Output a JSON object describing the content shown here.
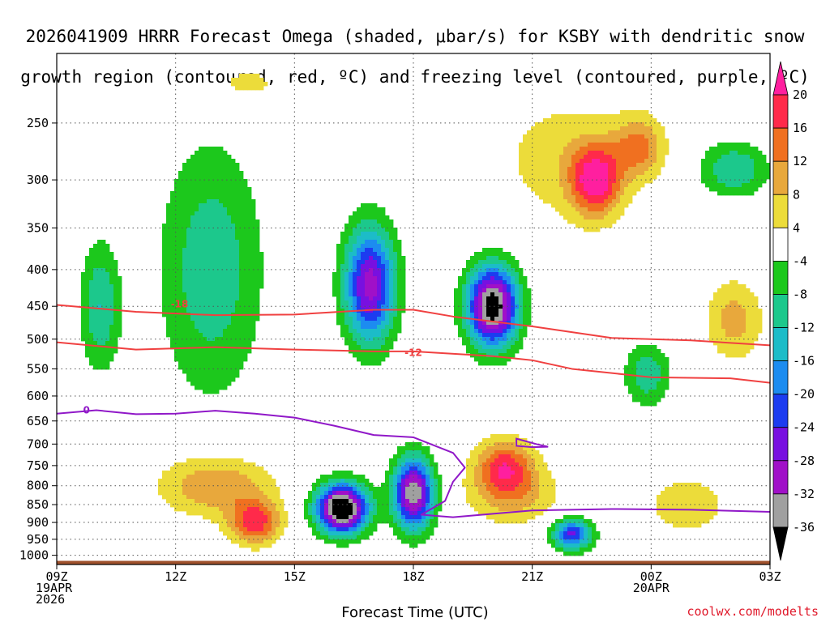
{
  "chart_data": {
    "type": "heatmap",
    "title_line1": "2026041909 HRRR Forecast Omega (shaded, μbar/s) for KSBY with dendritic snow",
    "title_line2": "growth region (contoured, red, ºC) and freezing level (contoured, purple, ºC)",
    "xlabel": "Forecast Time (UTC)",
    "ylabel": "",
    "credit": "coolwx.com/modelts",
    "y_axis": {
      "scale": "log-pressure",
      "range": [
        1030,
        200
      ],
      "ticks": [
        250,
        300,
        350,
        400,
        450,
        500,
        550,
        600,
        650,
        700,
        750,
        800,
        850,
        900,
        950,
        1000
      ]
    },
    "x_axis": {
      "range_hours": [
        0,
        18
      ],
      "ticks": [
        {
          "hour": 0,
          "lines": [
            "09Z",
            "19APR",
            "2026"
          ]
        },
        {
          "hour": 3,
          "lines": [
            "12Z"
          ]
        },
        {
          "hour": 6,
          "lines": [
            "15Z"
          ]
        },
        {
          "hour": 9,
          "lines": [
            "18Z"
          ]
        },
        {
          "hour": 12,
          "lines": [
            "21Z"
          ]
        },
        {
          "hour": 15,
          "lines": [
            "00Z",
            "20APR"
          ]
        },
        {
          "hour": 18,
          "lines": [
            "03Z"
          ]
        }
      ]
    },
    "colorbar": {
      "units": "μbar/s",
      "bins": [
        {
          "lo": 20,
          "hi": null,
          "color": "#ff1f9f"
        },
        {
          "lo": 16,
          "hi": 20,
          "color": "#ff2a4a"
        },
        {
          "lo": 12,
          "hi": 16,
          "color": "#f07020"
        },
        {
          "lo": 8,
          "hi": 12,
          "color": "#e8a83c"
        },
        {
          "lo": 4,
          "hi": 8,
          "color": "#ecdc3a"
        },
        {
          "lo": -4,
          "hi": 4,
          "color": "#ffffff"
        },
        {
          "lo": -8,
          "hi": -4,
          "color": "#1cc81c"
        },
        {
          "lo": -12,
          "hi": -8,
          "color": "#1cc88c"
        },
        {
          "lo": -16,
          "hi": -12,
          "color": "#1cbcc8"
        },
        {
          "lo": -20,
          "hi": -16,
          "color": "#1c8cf0"
        },
        {
          "lo": -24,
          "hi": -20,
          "color": "#1c3cf0"
        },
        {
          "lo": -28,
          "hi": -24,
          "color": "#7810e0"
        },
        {
          "lo": -32,
          "hi": -28,
          "color": "#a010c8"
        },
        {
          "lo": -36,
          "hi": -32,
          "color": "#a0a0a0"
        },
        {
          "lo": null,
          "hi": -36,
          "color": "#000000"
        }
      ],
      "labels": [
        "20",
        "16",
        "12",
        "8",
        "4",
        "-4",
        "-8",
        "-12",
        "-16",
        "-20",
        "-24",
        "-28",
        "-32",
        "-36"
      ]
    },
    "omega_features": [
      {
        "hour": 16.2,
        "p": 860,
        "sx": 0.45,
        "sy": 0.055,
        "peak": -44,
        "sign": "negative"
      },
      {
        "hour": 20.0,
        "p": 450,
        "sx": 0.45,
        "sy": 0.09,
        "peak": -40,
        "sign": "negative"
      },
      {
        "hour": 18.0,
        "p": 820,
        "sx": 0.35,
        "sy": 0.08,
        "peak": -36,
        "sign": "negative"
      },
      {
        "hour": 16.9,
        "p": 420,
        "sx": 0.45,
        "sy": 0.13,
        "peak": -30,
        "sign": "negative"
      },
      {
        "hour": 22.0,
        "p": 935,
        "sx": 0.35,
        "sy": 0.035,
        "peak": -25,
        "sign": "negative"
      },
      {
        "hour": 12.9,
        "p": 400,
        "sx": 0.9,
        "sy": 0.28,
        "peak": -11,
        "sign": "negative"
      },
      {
        "hour": 10.1,
        "p": 450,
        "sx": 0.35,
        "sy": 0.14,
        "peak": -12,
        "sign": "negative"
      },
      {
        "hour": 23.9,
        "p": 560,
        "sx": 0.4,
        "sy": 0.07,
        "peak": -11,
        "sign": "negative"
      },
      {
        "hour": 26.1,
        "p": 290,
        "sx": 0.6,
        "sy": 0.06,
        "peak": -12,
        "sign": "negative"
      },
      {
        "hour": 14.0,
        "p": 900,
        "sx": 0.45,
        "sy": 0.05,
        "peak": 18,
        "sign": "positive"
      },
      {
        "hour": 13.0,
        "p": 800,
        "sx": 1.0,
        "sy": 0.07,
        "peak": 12,
        "sign": "positive"
      },
      {
        "hour": 20.3,
        "p": 750,
        "sx": 0.5,
        "sy": 0.06,
        "peak": 16,
        "sign": "positive"
      },
      {
        "hour": 20.5,
        "p": 820,
        "sx": 0.8,
        "sy": 0.07,
        "peak": 10,
        "sign": "positive"
      },
      {
        "hour": 22.6,
        "p": 300,
        "sx": 0.45,
        "sy": 0.08,
        "peak": 21,
        "sign": "positive"
      },
      {
        "hour": 23.7,
        "p": 270,
        "sx": 0.45,
        "sy": 0.07,
        "peak": 13,
        "sign": "positive"
      },
      {
        "hour": 21.7,
        "p": 280,
        "sx": 1.2,
        "sy": 0.15,
        "peak": 6,
        "sign": "positive"
      },
      {
        "hour": 24.9,
        "p": 850,
        "sx": 0.9,
        "sy": 0.08,
        "peak": 6,
        "sign": "positive"
      },
      {
        "hour": 26.1,
        "p": 470,
        "sx": 0.5,
        "sy": 0.09,
        "peak": 10,
        "sign": "positive"
      },
      {
        "hour": 13.8,
        "p": 220,
        "sx": 0.6,
        "sy": 0.04,
        "peak": 6,
        "sign": "positive"
      }
    ],
    "contours": [
      {
        "name": "-18",
        "color": "#f04040",
        "label": "-18",
        "label_hour": 3.1,
        "label_p": 447,
        "points": [
          [
            0,
            448
          ],
          [
            2,
            458
          ],
          [
            4,
            463
          ],
          [
            6,
            462
          ],
          [
            8,
            455
          ],
          [
            9,
            455
          ],
          [
            10,
            465
          ],
          [
            12,
            480
          ],
          [
            14,
            498
          ],
          [
            16,
            502
          ],
          [
            18,
            510
          ]
        ]
      },
      {
        "name": "-12",
        "color": "#f04040",
        "label": "-12",
        "label_hour": 9.0,
        "label_p": 522,
        "points": [
          [
            0,
            505
          ],
          [
            2,
            517
          ],
          [
            4,
            513
          ],
          [
            6,
            517
          ],
          [
            8,
            520
          ],
          [
            9,
            520
          ],
          [
            11,
            528
          ],
          [
            12,
            535
          ],
          [
            13,
            550
          ],
          [
            15,
            565
          ],
          [
            17,
            567
          ],
          [
            18,
            575
          ]
        ]
      },
      {
        "name": "0",
        "color": "#9018c8",
        "label": "0",
        "label_hour": 0.75,
        "label_p": 628,
        "points": [
          [
            0,
            635
          ],
          [
            1,
            628
          ],
          [
            2,
            636
          ],
          [
            3,
            635
          ],
          [
            4,
            629
          ],
          [
            5,
            635
          ],
          [
            6,
            643
          ],
          [
            7,
            660
          ],
          [
            8,
            680
          ],
          [
            9,
            685
          ],
          [
            10,
            720
          ],
          [
            10.3,
            755
          ],
          [
            10,
            790
          ],
          [
            9.8,
            840
          ],
          [
            9.2,
            878
          ],
          [
            10,
            885
          ],
          [
            12,
            866
          ],
          [
            14,
            862
          ],
          [
            16,
            864
          ],
          [
            18,
            870
          ]
        ]
      }
    ],
    "freezing_bump": {
      "points": [
        [
          11.6,
          688
        ],
        [
          12.1,
          700
        ],
        [
          12.4,
          706
        ],
        [
          12.0,
          707
        ],
        [
          11.6,
          704
        ]
      ]
    },
    "ground": {
      "p_top": 1018,
      "p_bottom": 1040,
      "color": "#a0522d"
    }
  }
}
